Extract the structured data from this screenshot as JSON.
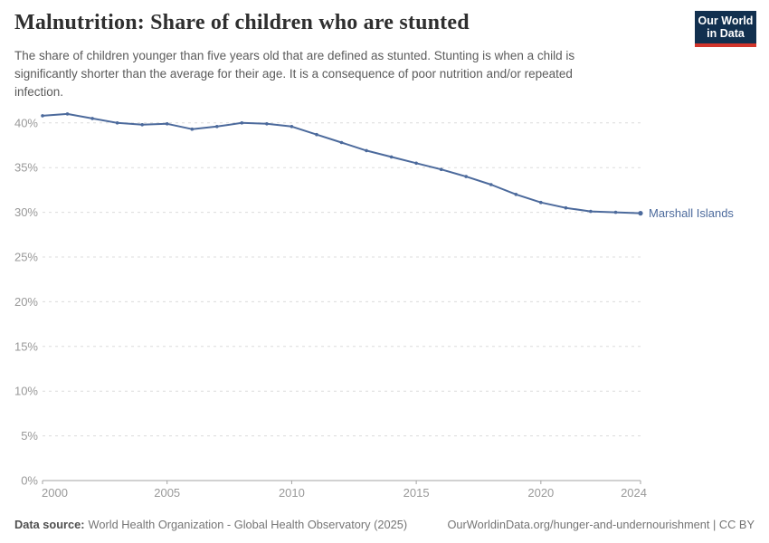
{
  "header": {
    "title": "Malnutrition: Share of children who are stunted",
    "subtitle_lines": [
      "The share of children younger than five years old that are defined as stunted. Stunting is when a child is",
      "significantly shorter than the average for their age. It is a consequence of poor nutrition and/or repeated",
      "infection."
    ],
    "logo": {
      "line1": "Our World",
      "line2": "in Data"
    }
  },
  "chart_data": {
    "type": "line",
    "title": "Malnutrition: Share of children who are stunted",
    "x": [
      2000,
      2001,
      2002,
      2003,
      2004,
      2005,
      2006,
      2007,
      2008,
      2009,
      2010,
      2011,
      2012,
      2013,
      2014,
      2015,
      2016,
      2017,
      2018,
      2019,
      2020,
      2021,
      2022,
      2023,
      2024
    ],
    "series": [
      {
        "name": "Marshall Islands",
        "color": "#4C6A9C",
        "values": [
          40.8,
          41.0,
          40.5,
          40.0,
          39.8,
          39.9,
          39.3,
          39.6,
          40.0,
          39.9,
          39.6,
          38.7,
          37.8,
          36.9,
          36.2,
          35.5,
          34.8,
          34.0,
          33.1,
          32.0,
          31.1,
          30.5,
          30.1,
          30.0,
          29.9
        ]
      }
    ],
    "xlabel": "",
    "ylabel": "",
    "xticks": [
      2000,
      2005,
      2010,
      2015,
      2020,
      2024
    ],
    "yticks": [
      0,
      5,
      10,
      15,
      20,
      25,
      30,
      35,
      40
    ],
    "ytick_suffix": "%",
    "ylim": [
      0,
      41.6
    ],
    "grid": "horizontal-dashed",
    "legend_position": "end-of-line-label",
    "end_label": "Marshall Islands",
    "colors": {
      "line": "#4C6A9C",
      "grid": "#dcdcdc",
      "axis": "#a3a3a3",
      "tick_text": "#999999"
    }
  },
  "footer": {
    "source_label": "Data source:",
    "source_value": "World Health Organization - Global Health Observatory (2025)",
    "link": "OurWorldinData.org/hunger-and-undernourishment | CC BY"
  }
}
